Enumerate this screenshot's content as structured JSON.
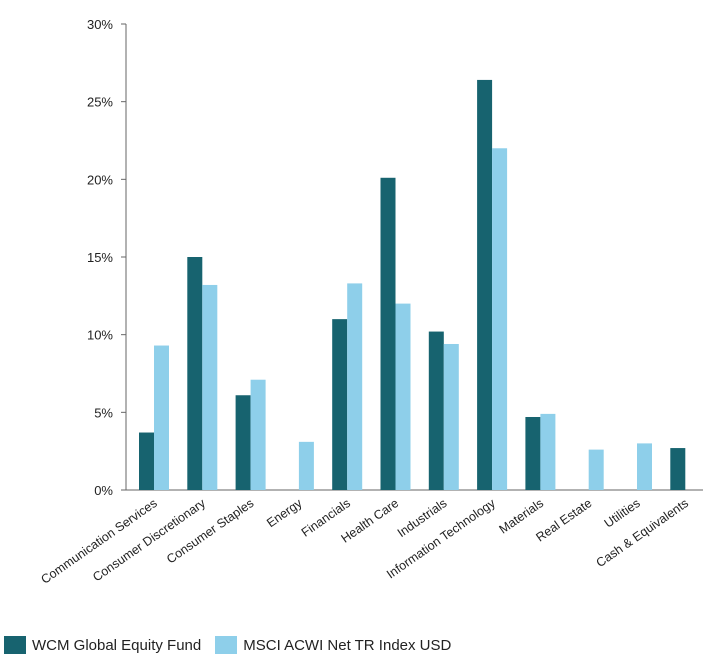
{
  "chart_data": {
    "type": "bar",
    "categories": [
      "Communication Services",
      "Consumer Discretionary",
      "Consumer Staples",
      "Energy",
      "Financials",
      "Health Care",
      "Industrials",
      "Information Technology",
      "Materials",
      "Real Estate",
      "Utilities",
      "Cash & Equivalents"
    ],
    "series": [
      {
        "name": "WCM Global Equity Fund",
        "color": "#17636f",
        "values": [
          3.7,
          15.0,
          6.1,
          null,
          11.0,
          20.1,
          10.2,
          26.4,
          4.7,
          null,
          null,
          2.7
        ]
      },
      {
        "name": "MSCI ACWI Net TR Index USD",
        "color": "#8ecfea",
        "values": [
          9.3,
          13.2,
          7.1,
          3.1,
          13.3,
          12.0,
          9.4,
          22.0,
          4.9,
          2.6,
          3.0,
          null
        ]
      }
    ],
    "y_ticks": [
      "0%",
      "5%",
      "10%",
      "15%",
      "20%",
      "25%",
      "30%"
    ],
    "ylim": [
      0,
      30
    ],
    "grid": false,
    "legend_position": "bottom-left"
  }
}
